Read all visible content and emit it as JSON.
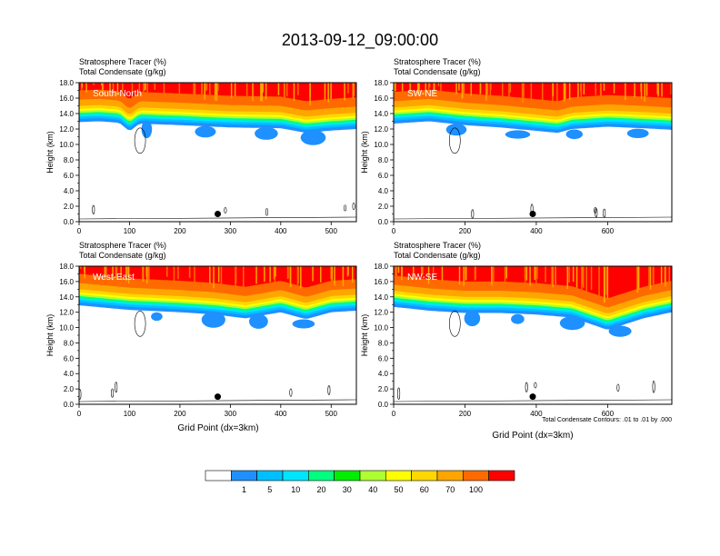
{
  "figure": {
    "title": "2013-09-12_09:00:00",
    "contour_note": "Total Condensate Contours: .01 to .01 by .000",
    "xlabel": "Grid Point (dx=3km)",
    "ylabel": "Height (km)"
  },
  "colors": {
    "levels": [
      "#ffffff",
      "#1e90ff",
      "#00bfff",
      "#00e5ff",
      "#00ff7f",
      "#00ee00",
      "#adff2f",
      "#ffff00",
      "#ffd700",
      "#ffa500",
      "#ff6a00",
      "#ff0000"
    ],
    "contour": "#000000",
    "marker": "#000000"
  },
  "colorbar": {
    "labels": [
      "1",
      "5",
      "10",
      "20",
      "30",
      "40",
      "50",
      "60",
      "70",
      "100"
    ]
  },
  "chart_data": [
    {
      "type": "heatmap",
      "panel_label": "South-North",
      "header_line1": "Stratosphere Tracer   (%)",
      "header_line2": "Total Condensate   (g/kg)",
      "xlim": [
        0,
        550
      ],
      "ylim": [
        0,
        18
      ],
      "xticks": [
        "0",
        "100",
        "200",
        "300",
        "400",
        "500"
      ],
      "yticks": [
        "0.0",
        "2.0",
        "4.0",
        "6.0",
        "8.0",
        "10.0",
        "12.0",
        "14.0",
        "16.0",
        "18.0"
      ],
      "tropopause_km": [
        [
          0,
          14.2
        ],
        [
          40,
          14.3
        ],
        [
          80,
          14.1
        ],
        [
          100,
          13.0
        ],
        [
          120,
          14.0
        ],
        [
          200,
          13.8
        ],
        [
          300,
          13.5
        ],
        [
          400,
          13.4
        ],
        [
          450,
          12.8
        ],
        [
          500,
          13.1
        ],
        [
          550,
          13.3
        ]
      ],
      "marker": {
        "x": 275,
        "y_km": 1.0
      }
    },
    {
      "type": "heatmap",
      "panel_label": "SW-NE",
      "header_line1": "Stratosphere Tracer   (%)",
      "header_line2": "Total Condensate   (g/kg)",
      "xlim": [
        0,
        780
      ],
      "ylim": [
        0,
        18
      ],
      "xticks": [
        "0",
        "200",
        "400",
        "600"
      ],
      "yticks": [
        "0.0",
        "2.0",
        "4.0",
        "6.0",
        "8.0",
        "10.0",
        "12.0",
        "14.0",
        "16.0",
        "18.0"
      ],
      "tropopause_km": [
        [
          0,
          14.0
        ],
        [
          100,
          14.3
        ],
        [
          200,
          13.8
        ],
        [
          300,
          13.5
        ],
        [
          460,
          12.8
        ],
        [
          500,
          13.3
        ],
        [
          600,
          13.6
        ],
        [
          700,
          13.4
        ],
        [
          780,
          13.2
        ]
      ],
      "marker": {
        "x": 390,
        "y_km": 1.0
      }
    },
    {
      "type": "heatmap",
      "panel_label": "West-East",
      "header_line1": "Stratosphere Tracer   (%)",
      "header_line2": "Total Condensate   (g/kg)",
      "xlim": [
        0,
        550
      ],
      "ylim": [
        0,
        18
      ],
      "xticks": [
        "0",
        "100",
        "200",
        "300",
        "400",
        "500"
      ],
      "yticks": [
        "0.0",
        "2.0",
        "4.0",
        "6.0",
        "8.0",
        "10.0",
        "12.0",
        "14.0",
        "16.0",
        "18.0"
      ],
      "tropopause_km": [
        [
          0,
          14.2
        ],
        [
          100,
          13.6
        ],
        [
          200,
          13.3
        ],
        [
          270,
          13.0
        ],
        [
          330,
          12.5
        ],
        [
          400,
          13.3
        ],
        [
          450,
          12.4
        ],
        [
          500,
          13.3
        ],
        [
          550,
          13.5
        ]
      ],
      "marker": {
        "x": 275,
        "y_km": 1.0
      }
    },
    {
      "type": "heatmap",
      "panel_label": "NW-SE",
      "header_line1": "Stratosphere Tracer   (%)",
      "header_line2": "Total Condensate   (g/kg)",
      "xlim": [
        0,
        780
      ],
      "ylim": [
        0,
        18
      ],
      "xticks": [
        "0",
        "200",
        "400",
        "600"
      ],
      "yticks": [
        "0.0",
        "2.0",
        "4.0",
        "6.0",
        "8.0",
        "10.0",
        "12.0",
        "14.0",
        "16.0",
        "18.0"
      ],
      "tropopause_km": [
        [
          0,
          14.0
        ],
        [
          100,
          13.5
        ],
        [
          200,
          13.2
        ],
        [
          300,
          13.2
        ],
        [
          400,
          13.0
        ],
        [
          500,
          12.6
        ],
        [
          600,
          11.0
        ],
        [
          700,
          12.5
        ],
        [
          780,
          13.3
        ]
      ],
      "marker": {
        "x": 390,
        "y_km": 1.0
      }
    }
  ]
}
